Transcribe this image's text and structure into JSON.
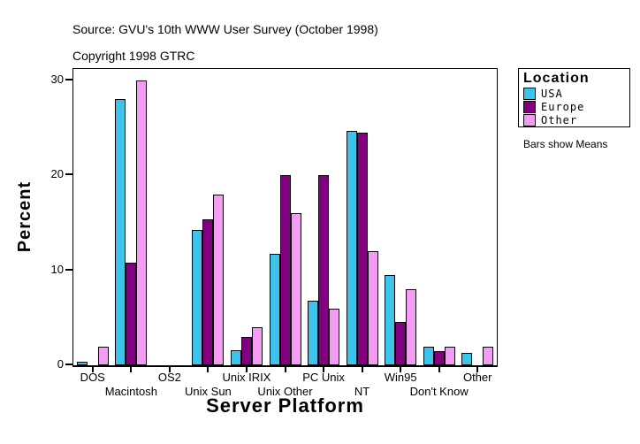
{
  "header": {
    "source_line": "Source: GVU's 10th WWW User Survey (October 1998)",
    "copyright_line": "Copyright 1998 GTRC"
  },
  "legend": {
    "title": "Location",
    "items": [
      {
        "label": "USA",
        "color": "#3EC3EC"
      },
      {
        "label": "Europe",
        "color": "#800080"
      },
      {
        "label": "Other",
        "color": "#F49CF4"
      }
    ],
    "note": "Bars show Means"
  },
  "chart_data": {
    "type": "bar",
    "title": "",
    "xlabel": "Server Platform",
    "ylabel": "Percent",
    "ylim": [
      0,
      30
    ],
    "yticks": [
      0,
      10,
      20,
      30
    ],
    "grid": false,
    "legend_position": "right",
    "categories": [
      "DOS",
      "Macintosh",
      "OS2",
      "Unix Sun",
      "Unix IRIX",
      "Unix Other",
      "PC Unix",
      "NT",
      "Win95",
      "Don't Know",
      "Other"
    ],
    "series": [
      {
        "name": "USA",
        "color": "#3EC3EC",
        "values": [
          0.4,
          28,
          0,
          14.3,
          1.6,
          11.7,
          6.8,
          24.7,
          9.5,
          2,
          1.3
        ]
      },
      {
        "name": "Europe",
        "color": "#800080",
        "values": [
          0,
          10.8,
          0,
          15.4,
          3,
          20,
          20,
          24.5,
          4.6,
          1.5,
          0
        ]
      },
      {
        "name": "Other",
        "color": "#F49CF4",
        "values": [
          2,
          30,
          0,
          18,
          4,
          16,
          6,
          12,
          8,
          2,
          2
        ]
      }
    ]
  }
}
